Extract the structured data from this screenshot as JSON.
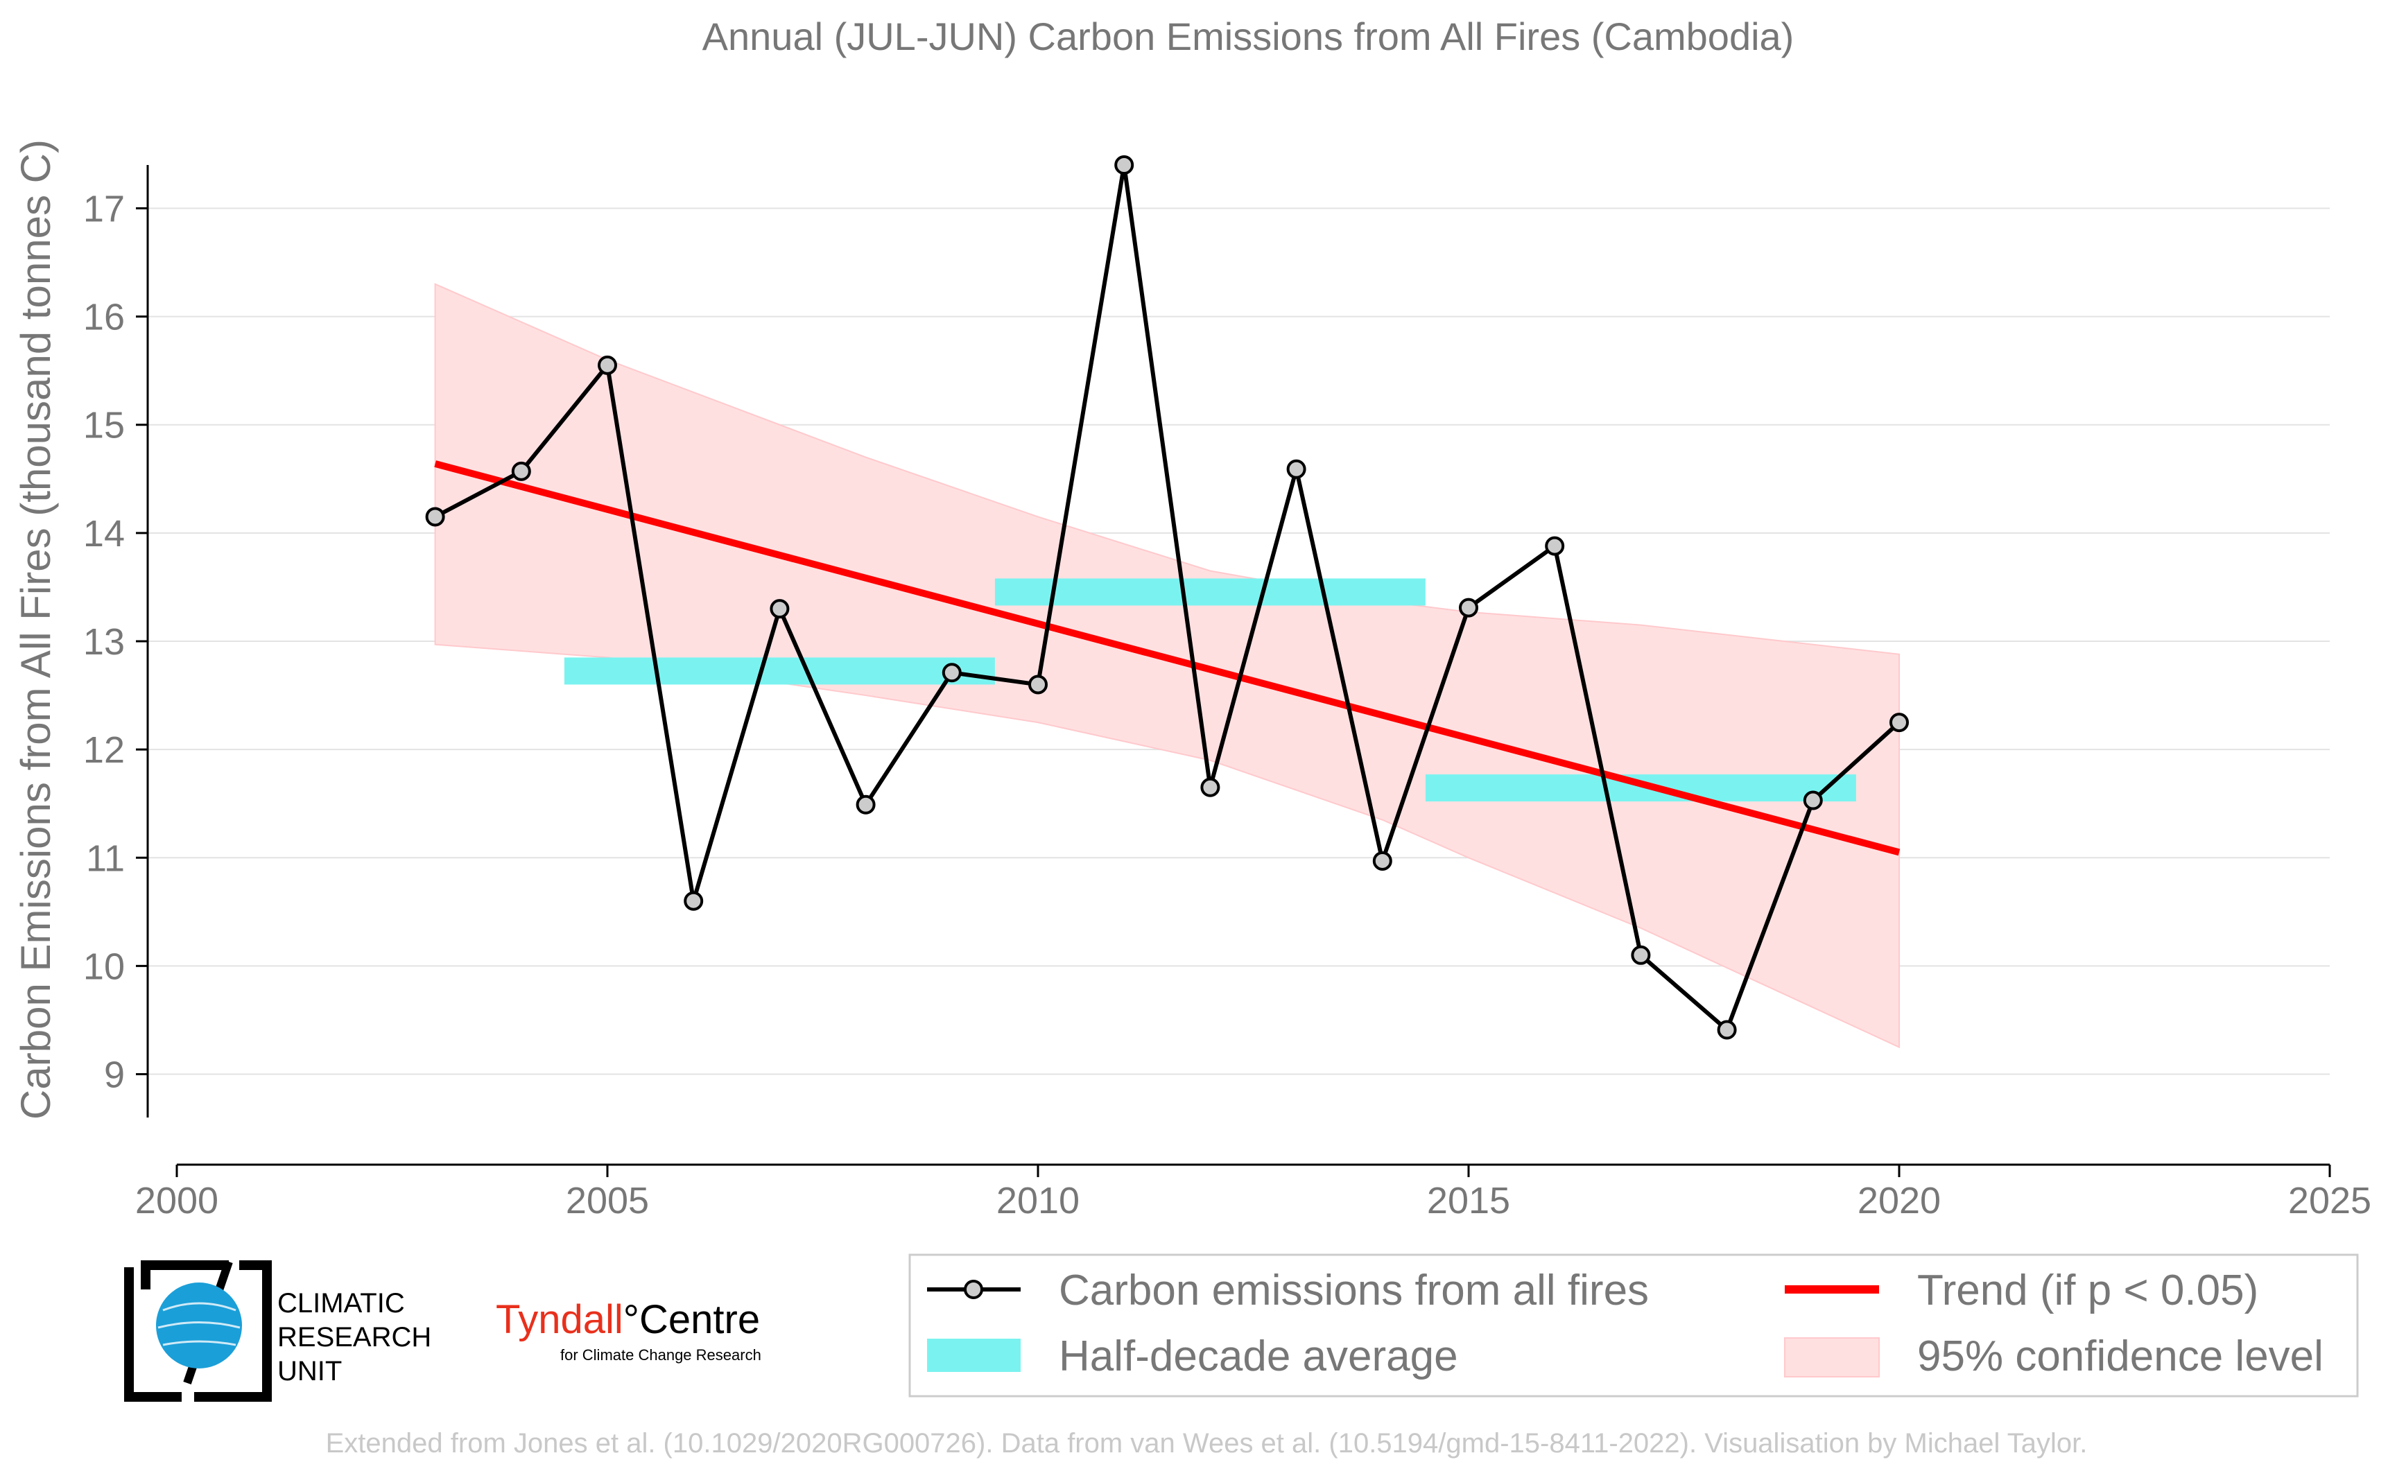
{
  "chart_data": {
    "type": "line",
    "title": "Annual (JUL-JUN) Carbon Emissions from All Fires (Cambodia)",
    "xlabel": "",
    "ylabel": "Carbon Emissions from All Fires (thousand tonnes C)",
    "xlim": [
      2000,
      2025
    ],
    "ylim": [
      8.6,
      17.4
    ],
    "xticks": [
      2000,
      2005,
      2010,
      2015,
      2020,
      2025
    ],
    "yticks": [
      9,
      10,
      11,
      12,
      13,
      14,
      15,
      16,
      17
    ],
    "grid": "horizontal",
    "legend_position": "bottom-right",
    "series": [
      {
        "name": "Carbon emissions from all fires",
        "kind": "line-markers",
        "color": "#000000",
        "x": [
          2003,
          2004,
          2005,
          2006,
          2007,
          2008,
          2009,
          2010,
          2011,
          2012,
          2013,
          2014,
          2015,
          2016,
          2017,
          2018,
          2019,
          2020
        ],
        "y": [
          14.15,
          14.57,
          15.55,
          10.6,
          13.3,
          11.49,
          12.71,
          12.6,
          17.4,
          11.65,
          14.59,
          10.97,
          13.31,
          13.88,
          10.1,
          9.41,
          11.53,
          12.25
        ]
      },
      {
        "name": "Half-decade average",
        "kind": "band",
        "color": "#7af3f0",
        "segments": [
          {
            "x": [
              2004.5,
              2009.5
            ],
            "y": [
              12.6,
              12.85
            ]
          },
          {
            "x": [
              2009.5,
              2014.5
            ],
            "y": [
              13.33,
              13.58
            ]
          },
          {
            "x": [
              2014.5,
              2019.5
            ],
            "y": [
              11.52,
              11.77
            ]
          }
        ]
      },
      {
        "name": "Trend (if p < 0.05)",
        "kind": "line",
        "color": "#ff0000",
        "x": [
          2003,
          2020
        ],
        "y": [
          14.64,
          11.05
        ]
      },
      {
        "name": "95% confidence level",
        "kind": "area",
        "color": "#ffe0e1",
        "x": [
          2003,
          2005,
          2008,
          2010,
          2012,
          2014,
          2015,
          2017,
          2020
        ],
        "upper": [
          16.3,
          15.6,
          14.7,
          14.15,
          13.65,
          13.37,
          13.27,
          13.15,
          12.88
        ],
        "lower": [
          12.97,
          12.85,
          12.5,
          12.25,
          11.9,
          11.35,
          11.0,
          10.35,
          9.25
        ]
      }
    ]
  },
  "legend": {
    "items": [
      {
        "label": "Carbon emissions from all fires"
      },
      {
        "label": "Trend (if p < 0.05)"
      },
      {
        "label": "Half-decade average"
      },
      {
        "label": "95% confidence level"
      }
    ]
  },
  "logos": {
    "cru": {
      "line1": "CLIMATIC",
      "line2": "RESEARCH",
      "line3": "UNIT"
    },
    "tyndall": {
      "name1": "Tyndall",
      "degree": "°",
      "name2": "Centre",
      "tagline": "for Climate Change Research"
    }
  },
  "footer": {
    "credit": "Extended from Jones et al. (10.1029/2020RG000726). Data from van Wees et al. (10.5194/gmd-15-8411-2022). Visualisation by Michael Taylor."
  },
  "colors": {
    "line": "#000000",
    "marker_fill": "#cccccc",
    "trend": "#ff0000",
    "band": "#7af3f0",
    "confidence": "#ffe0e1",
    "text": "#777777",
    "tyndall_red": "#e8301c",
    "cru_blue": "#1b9fd8"
  }
}
